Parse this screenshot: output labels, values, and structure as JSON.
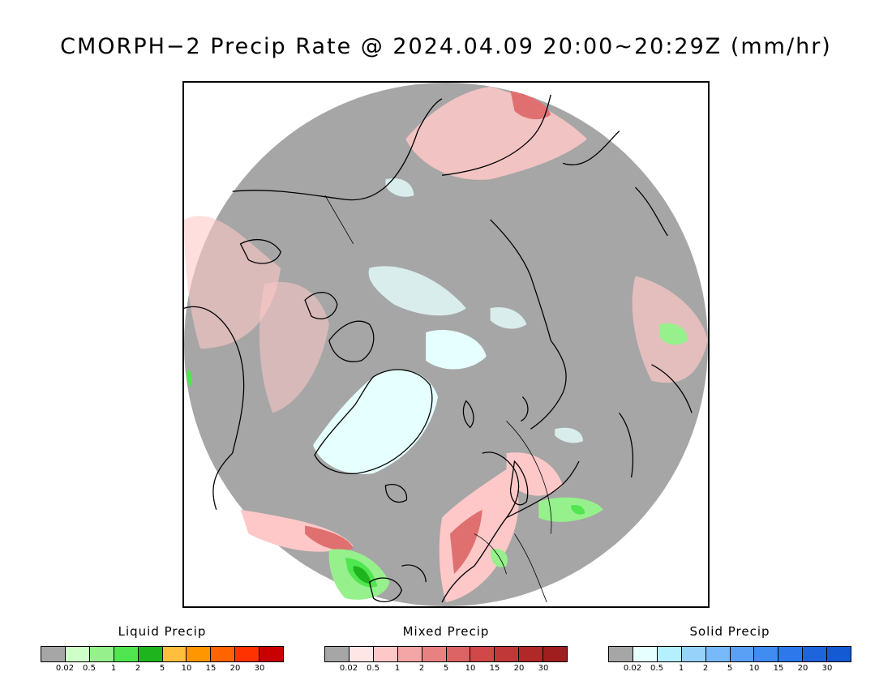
{
  "title": "CMORPH−2 Precip Rate @ 2024.04.09 20:00~20:29Z (mm/hr)",
  "map": {
    "projection": "north polar stereographic",
    "background_color": "#a6a6a6",
    "outside_color": "#ffffff",
    "coastline_color": "#000000"
  },
  "legends": [
    {
      "title": "Liquid Precip",
      "colors": [
        "#a6a6a6",
        "#cfffc8",
        "#96f08c",
        "#50e650",
        "#1eb41e",
        "#ffbe3c",
        "#ff9600",
        "#ff6400",
        "#ff3200",
        "#c80000"
      ],
      "ticks": [
        "0.02",
        "0.5",
        "1",
        "2",
        "5",
        "10",
        "15",
        "20",
        "30"
      ]
    },
    {
      "title": "Mixed Precip",
      "colors": [
        "#a6a6a6",
        "#ffe6e6",
        "#ffc8c8",
        "#f4a6a6",
        "#e88282",
        "#dc6464",
        "#d04848",
        "#c03838",
        "#b02828",
        "#a01e1e"
      ],
      "ticks": [
        "0.02",
        "0.5",
        "1",
        "2",
        "5",
        "10",
        "15",
        "20",
        "30"
      ]
    },
    {
      "title": "Solid Precip",
      "colors": [
        "#a6a6a6",
        "#e6ffff",
        "#b4f0ff",
        "#96d2fa",
        "#78b9fa",
        "#5aa0f5",
        "#418cf0",
        "#2d78eb",
        "#1e64dc",
        "#145ad2"
      ],
      "ticks": [
        "0.02",
        "0.5",
        "1",
        "2",
        "5",
        "10",
        "15",
        "20",
        "30"
      ]
    }
  ]
}
